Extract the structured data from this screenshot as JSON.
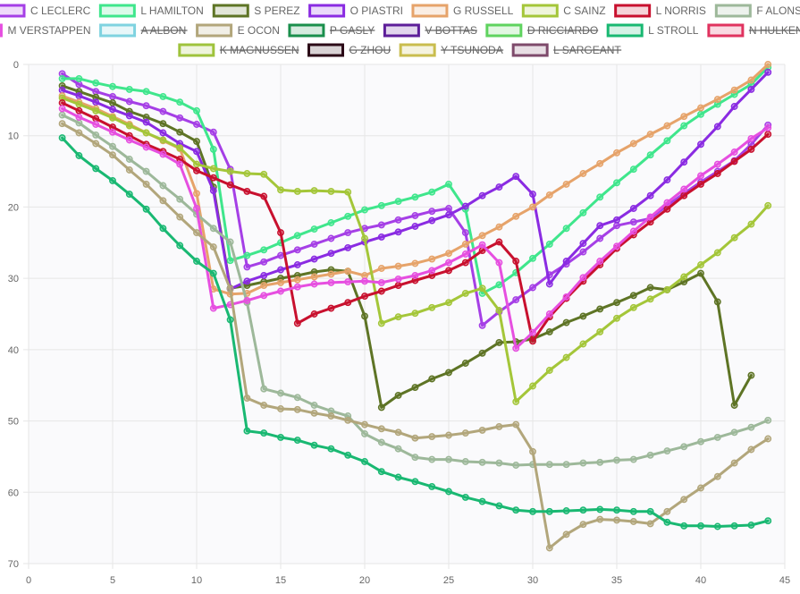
{
  "chart_data": {
    "type": "line",
    "title": "",
    "xlabel": "",
    "ylabel": "",
    "xlim": [
      0,
      45
    ],
    "ylim": [
      0,
      70
    ],
    "y_reversed": true,
    "x_ticks": [
      0,
      5,
      10,
      15,
      20,
      25,
      30,
      35,
      40,
      45
    ],
    "y_ticks": [
      0,
      10,
      20,
      30,
      40,
      50,
      60,
      70
    ],
    "grid": true,
    "legend": "top",
    "legend_columns": [
      8,
      8,
      8
    ],
    "series": [
      {
        "name": "C LECLERC",
        "color": "#a53fe6",
        "hidden": false,
        "x": [
          2,
          3,
          4,
          5,
          6,
          7,
          8,
          9,
          10,
          11,
          12,
          13,
          14,
          15,
          16,
          17,
          18,
          19,
          20,
          21,
          22,
          23,
          24,
          25,
          26,
          27,
          28,
          29,
          30,
          31,
          32,
          33,
          34,
          35,
          36,
          37,
          38,
          39,
          40,
          41,
          42,
          43,
          44
        ],
        "y": [
          1.3,
          2.8,
          3.8,
          4.5,
          5.2,
          5.8,
          6.6,
          7.5,
          8.4,
          9.5,
          14.7,
          28.4,
          27.7,
          26.8,
          26.0,
          25.2,
          24.4,
          23.6,
          23.0,
          22.5,
          21.8,
          21.2,
          20.6,
          20.2,
          23.6,
          36.6,
          34.7,
          33.0,
          31.3,
          29.5,
          28.0,
          26.3,
          24.4,
          22.6,
          22.1,
          21.6,
          19.8,
          18.1,
          16.5,
          15.0,
          13.5,
          11.2,
          8.5
        ]
      },
      {
        "name": "L HAMILTON",
        "color": "#3fe68c",
        "hidden": false,
        "x": [
          2,
          3,
          4,
          5,
          6,
          7,
          8,
          9,
          10,
          11,
          12,
          13,
          14,
          15,
          16,
          17,
          18,
          19,
          20,
          21,
          22,
          23,
          24,
          25,
          26,
          27,
          28,
          29,
          30,
          31,
          32,
          33,
          34,
          35,
          36,
          37,
          38,
          39,
          40,
          41,
          42,
          43,
          44
        ],
        "y": [
          2.0,
          2.0,
          2.6,
          3.1,
          3.5,
          3.8,
          4.5,
          5.3,
          6.5,
          11.9,
          27.5,
          26.8,
          26.0,
          25.0,
          24.0,
          23.1,
          22.2,
          21.3,
          20.4,
          19.8,
          19.2,
          18.6,
          17.9,
          16.8,
          20.3,
          32.1,
          30.9,
          29.2,
          27.2,
          25.2,
          23.0,
          20.8,
          18.6,
          16.6,
          14.7,
          12.7,
          10.7,
          8.6,
          7.0,
          5.6,
          4.2,
          2.8,
          0.4
        ]
      },
      {
        "name": "S PEREZ",
        "color": "#5e7425",
        "hidden": false,
        "x": [
          2,
          3,
          4,
          5,
          6,
          7,
          8,
          9,
          10,
          11,
          12,
          13,
          14,
          15,
          16,
          17,
          18,
          19,
          20,
          21,
          22,
          23,
          24,
          25,
          26,
          27,
          28,
          29,
          30,
          31,
          32,
          33,
          34,
          35,
          36,
          37,
          38,
          39,
          40,
          41,
          42,
          43
        ],
        "y": [
          3.0,
          3.8,
          4.6,
          5.4,
          6.6,
          7.4,
          8.3,
          9.5,
          10.8,
          17.2,
          31.4,
          31.0,
          30.5,
          30.0,
          29.6,
          29.1,
          28.8,
          29.0,
          35.3,
          48.1,
          46.4,
          45.3,
          44.1,
          43.2,
          41.9,
          40.5,
          39.0,
          38.9,
          38.5,
          37.5,
          36.2,
          35.3,
          34.3,
          33.4,
          32.4,
          31.3,
          31.6,
          30.5,
          29.3,
          33.3,
          47.8,
          43.6
        ]
      },
      {
        "name": "O PIASTRI",
        "color": "#8a2be2",
        "hidden": false,
        "x": [
          2,
          3,
          4,
          5,
          6,
          7,
          8,
          9,
          10,
          11,
          12,
          13,
          14,
          15,
          16,
          17,
          18,
          19,
          20,
          21,
          22,
          23,
          24,
          25,
          26,
          27,
          28,
          29,
          30,
          31,
          32,
          33,
          34,
          35,
          36,
          37,
          38,
          39,
          40,
          41,
          42,
          43,
          44
        ],
        "y": [
          3.6,
          4.4,
          5.3,
          6.3,
          7.2,
          8.1,
          9.6,
          11.1,
          12.2,
          17.7,
          31.5,
          30.4,
          29.6,
          28.8,
          28.1,
          27.3,
          26.5,
          25.7,
          24.9,
          24.2,
          23.5,
          22.7,
          21.9,
          21.1,
          19.9,
          18.4,
          17.2,
          15.7,
          18.2,
          30.8,
          27.6,
          25.1,
          22.6,
          21.8,
          20.2,
          18.4,
          16.2,
          13.7,
          11.2,
          8.7,
          5.9,
          3.5,
          1.1
        ]
      },
      {
        "name": "G RUSSELL",
        "color": "#e6a36a",
        "hidden": false,
        "x": [
          2,
          3,
          4,
          5,
          6,
          7,
          8,
          9,
          10,
          11,
          12,
          13,
          14,
          15,
          16,
          17,
          18,
          19,
          20,
          21,
          22,
          23,
          24,
          25,
          26,
          27,
          28,
          29,
          30,
          31,
          32,
          33,
          34,
          35,
          36,
          37,
          38,
          39,
          40,
          41,
          42,
          43,
          44
        ],
        "y": [
          4.4,
          5.3,
          6.2,
          7.3,
          8.4,
          9.6,
          10.7,
          11.8,
          18.1,
          31.5,
          32.2,
          32.1,
          31.0,
          30.6,
          30.2,
          29.8,
          29.4,
          29.0,
          29.6,
          28.6,
          28.3,
          27.9,
          27.3,
          26.5,
          25.2,
          24.0,
          22.8,
          21.3,
          20.0,
          18.3,
          16.8,
          15.3,
          13.9,
          12.4,
          11.1,
          9.8,
          8.6,
          7.3,
          6.1,
          4.9,
          3.6,
          2.2,
          0.0
        ]
      },
      {
        "name": "C SAINZ",
        "color": "#a4c639",
        "hidden": false,
        "x": [
          2,
          3,
          4,
          5,
          6,
          7,
          8,
          9,
          10,
          11,
          12,
          13,
          14,
          15,
          16,
          17,
          18,
          19,
          20,
          21,
          22,
          23,
          24,
          25,
          26,
          27,
          28,
          29,
          30,
          31,
          32,
          33,
          34,
          35,
          36,
          37,
          38,
          39,
          40,
          41,
          42,
          43,
          44
        ],
        "y": [
          4.7,
          5.6,
          6.5,
          7.5,
          8.6,
          9.6,
          10.6,
          11.7,
          14.0,
          14.6,
          15.0,
          15.3,
          15.4,
          17.6,
          17.8,
          17.7,
          17.8,
          17.9,
          24.4,
          36.3,
          35.4,
          34.9,
          34.1,
          33.4,
          32.1,
          31.4,
          34.5,
          47.3,
          45.1,
          42.9,
          41.1,
          39.2,
          37.5,
          35.6,
          34.1,
          32.9,
          31.6,
          29.8,
          28.1,
          26.4,
          24.3,
          22.4,
          19.8
        ]
      },
      {
        "name": "L NORRIS",
        "color": "#c8102e",
        "hidden": false,
        "x": [
          2,
          3,
          4,
          5,
          6,
          7,
          8,
          9,
          10,
          11,
          12,
          13,
          14,
          15,
          16,
          17,
          18,
          19,
          20,
          21,
          22,
          23,
          24,
          25,
          26,
          27,
          28,
          29,
          30,
          31,
          32,
          33,
          34,
          35,
          36,
          37,
          38,
          39,
          40,
          41,
          42,
          43,
          44
        ],
        "y": [
          5.4,
          6.5,
          7.6,
          8.8,
          10.0,
          11.2,
          12.2,
          13.3,
          14.9,
          15.9,
          16.9,
          17.8,
          18.5,
          23.6,
          36.3,
          35.0,
          34.2,
          33.4,
          32.5,
          31.8,
          31.0,
          30.3,
          29.6,
          28.9,
          27.8,
          26.1,
          24.9,
          27.6,
          38.8,
          35.4,
          32.8,
          30.4,
          28.1,
          25.8,
          23.9,
          22.1,
          20.3,
          18.4,
          16.8,
          15.3,
          13.6,
          11.9,
          9.8
        ]
      },
      {
        "name": "F ALONSO",
        "color": "#9db89a",
        "hidden": false,
        "x": [
          2,
          3,
          4,
          5,
          6,
          7,
          8,
          9,
          10,
          11,
          12,
          13,
          14,
          15,
          16,
          17,
          18,
          19,
          20,
          21,
          22,
          23,
          24,
          25,
          26,
          27,
          28,
          29,
          30,
          31,
          32,
          33,
          34,
          35,
          36,
          37,
          38,
          39,
          40,
          41,
          42,
          43,
          44
        ],
        "y": [
          7.1,
          8.2,
          9.9,
          11.5,
          13.3,
          15.0,
          17.0,
          18.9,
          21.0,
          23.0,
          24.9,
          33.4,
          45.5,
          46.1,
          46.7,
          47.8,
          48.6,
          49.3,
          51.8,
          53.0,
          53.9,
          55.1,
          55.4,
          55.4,
          55.7,
          55.8,
          55.9,
          56.2,
          56.1,
          56.1,
          56.1,
          55.9,
          55.8,
          55.5,
          55.4,
          54.8,
          54.2,
          53.6,
          52.9,
          52.3,
          51.6,
          50.9,
          49.9
        ]
      },
      {
        "name": "M VERSTAPPEN",
        "color": "#e64fe0",
        "hidden": false,
        "x": [
          2,
          3,
          4,
          5,
          6,
          7,
          8,
          9,
          10,
          11,
          12,
          13,
          14,
          15,
          16,
          17,
          18,
          19,
          20,
          21,
          22,
          23,
          24,
          25,
          26,
          27,
          28,
          29,
          30,
          31,
          32,
          33,
          34,
          35,
          36,
          37,
          38,
          39,
          40,
          41,
          42,
          43,
          44
        ],
        "y": [
          6.2,
          7.4,
          8.4,
          9.5,
          10.6,
          11.6,
          12.6,
          14.0,
          20.2,
          34.2,
          33.7,
          33.1,
          32.4,
          31.8,
          31.2,
          30.8,
          30.6,
          30.5,
          30.4,
          30.6,
          30.1,
          29.6,
          28.9,
          27.8,
          26.6,
          25.3,
          27.8,
          39.8,
          37.6,
          35.0,
          32.6,
          29.9,
          27.6,
          25.5,
          23.4,
          21.4,
          19.4,
          17.5,
          15.6,
          14.0,
          12.3,
          10.4,
          8.9
        ]
      },
      {
        "name": "A ALBON",
        "color": "#7fd3e0",
        "hidden": true,
        "x": [],
        "y": []
      },
      {
        "name": "E OCON",
        "color": "#b2a67b",
        "hidden": false,
        "x": [
          2,
          3,
          4,
          5,
          6,
          7,
          8,
          9,
          10,
          11,
          12,
          13,
          14,
          15,
          16,
          17,
          18,
          19,
          20,
          21,
          22,
          23,
          24,
          25,
          26,
          27,
          28,
          29,
          30,
          31,
          32,
          33,
          34,
          35,
          36,
          37,
          38,
          39,
          40,
          41,
          42,
          43,
          44
        ],
        "y": [
          8.3,
          9.6,
          11.1,
          12.7,
          14.8,
          16.8,
          19.1,
          21.4,
          23.6,
          25.6,
          31.5,
          46.8,
          47.8,
          48.3,
          48.4,
          48.9,
          49.3,
          49.9,
          50.5,
          51.1,
          51.6,
          52.4,
          52.2,
          52.0,
          51.7,
          51.3,
          50.8,
          50.5,
          54.3,
          67.8,
          65.9,
          64.5,
          63.8,
          63.9,
          64.1,
          64.4,
          62.7,
          61.0,
          59.4,
          57.8,
          55.9,
          54.0,
          52.5
        ]
      },
      {
        "name": "P GASLY",
        "color": "#1a8f4c",
        "hidden": true,
        "x": [],
        "y": []
      },
      {
        "name": "V BOTTAS",
        "color": "#5d1e99",
        "hidden": true,
        "x": [],
        "y": []
      },
      {
        "name": "D RICCIARDO",
        "color": "#5fd35f",
        "hidden": true,
        "x": [],
        "y": []
      },
      {
        "name": "L STROLL",
        "color": "#19b872",
        "hidden": false,
        "x": [
          2,
          3,
          4,
          5,
          6,
          7,
          8,
          9,
          10,
          11,
          12,
          13,
          14,
          15,
          16,
          17,
          18,
          19,
          20,
          21,
          22,
          23,
          24,
          25,
          26,
          27,
          28,
          29,
          30,
          31,
          32,
          33,
          34,
          35,
          36,
          37,
          38,
          39,
          40,
          41,
          42,
          43,
          44
        ],
        "y": [
          10.3,
          12.8,
          14.6,
          16.3,
          18.2,
          20.3,
          23.0,
          25.4,
          27.6,
          29.3,
          35.8,
          51.4,
          51.7,
          52.3,
          52.7,
          53.4,
          53.9,
          54.8,
          55.7,
          57.1,
          57.9,
          58.5,
          59.2,
          59.9,
          60.7,
          61.3,
          61.9,
          62.5,
          62.7,
          62.7,
          62.6,
          62.5,
          62.4,
          62.5,
          62.7,
          62.7,
          64.2,
          64.7,
          64.7,
          64.8,
          64.7,
          64.6,
          64.0
        ]
      },
      {
        "name": "N HULKENBERG",
        "color": "#e0335f",
        "hidden": true,
        "x": [],
        "y": []
      },
      {
        "name": "K MAGNUSSEN",
        "color": "#9fc33c",
        "hidden": true,
        "x": [],
        "y": []
      },
      {
        "name": "G ZHOU",
        "color": "#2b0a17",
        "hidden": true,
        "x": [],
        "y": []
      },
      {
        "name": "Y TSUNODA",
        "color": "#c9bd4e",
        "hidden": true,
        "x": [],
        "y": []
      },
      {
        "name": "L SARGEANT",
        "color": "#7e4a6b",
        "hidden": true,
        "x": [],
        "y": []
      }
    ]
  }
}
